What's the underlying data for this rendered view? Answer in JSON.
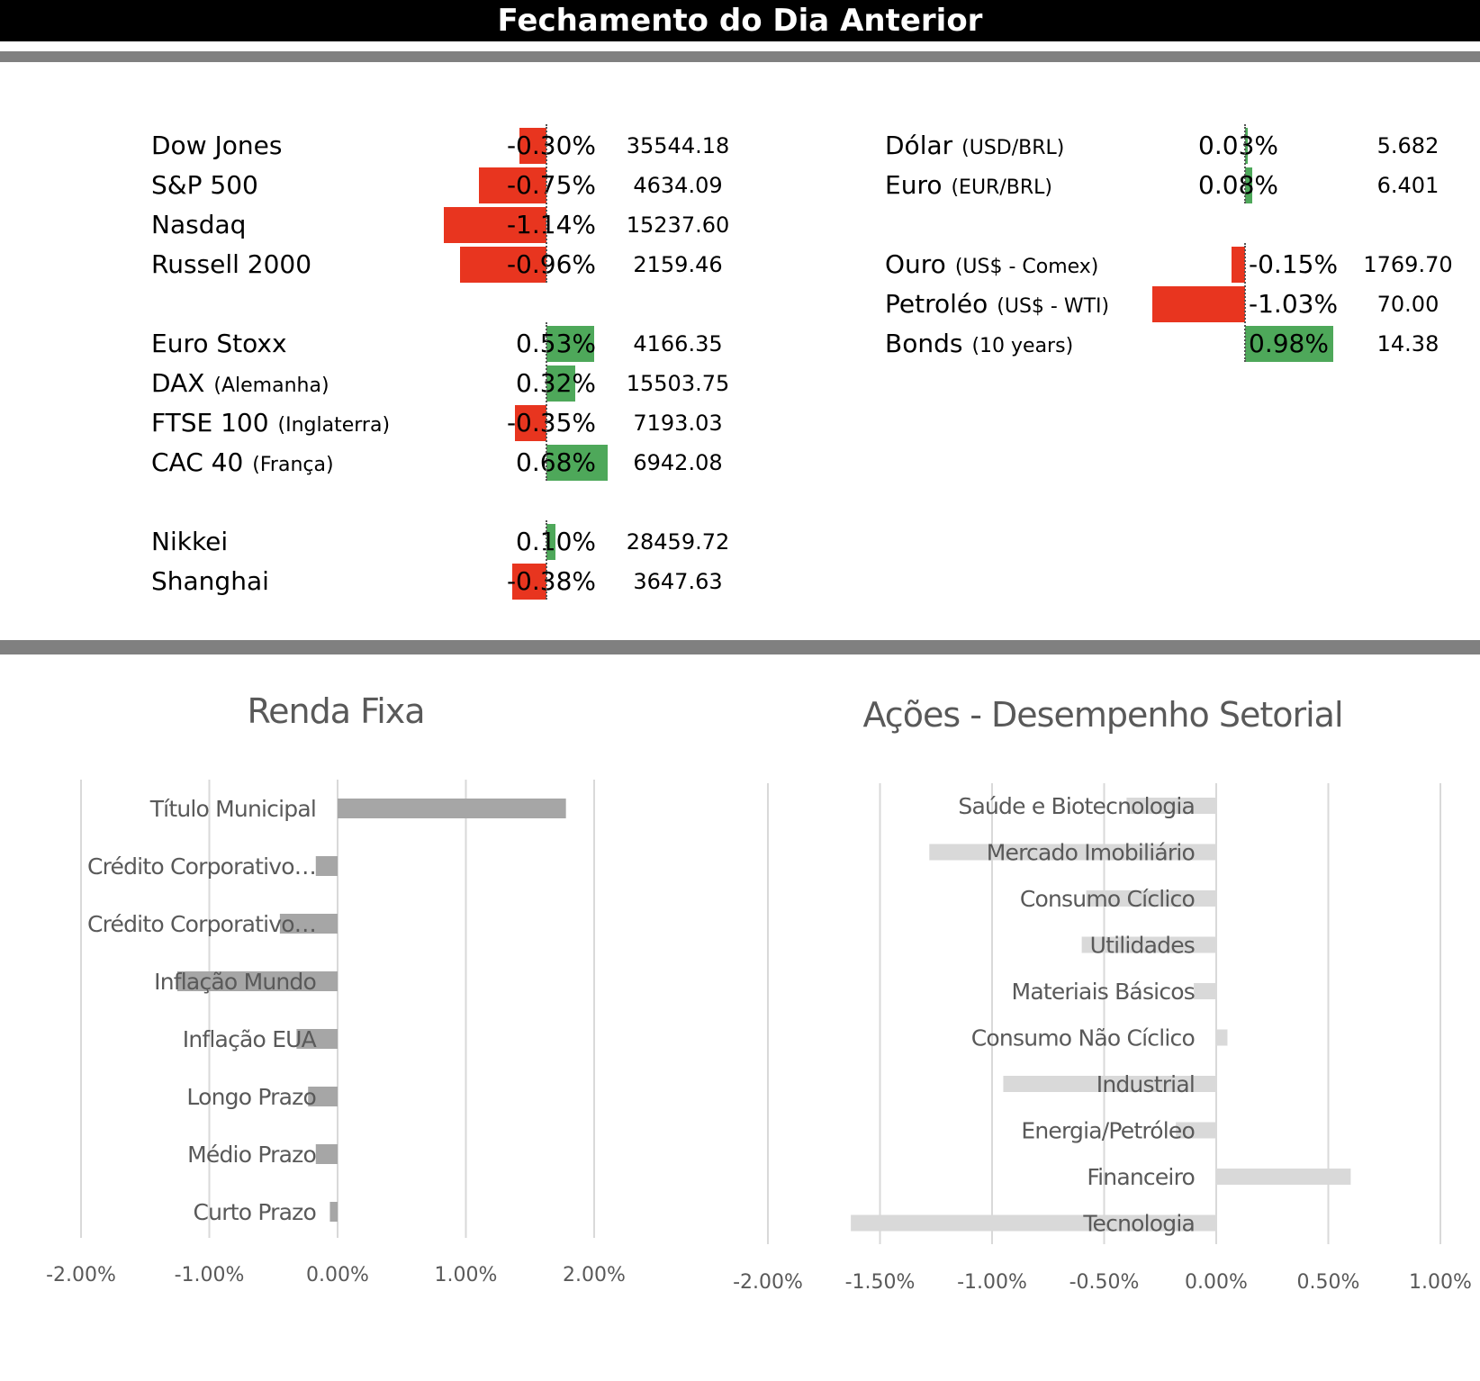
{
  "header": {
    "title": "Fechamento do Dia Anterior"
  },
  "colors": {
    "negative": "#e8351f",
    "positive": "#4ea85a",
    "rule": "#808080",
    "fixed_income_bar": "#a6a6a6",
    "sector_bar": "#d9d9d9",
    "grid": "#d9d9d9",
    "chart_text": "#595959"
  },
  "indices_left": [
    {
      "name": "Dow Jones",
      "qualifier": "",
      "change": -0.3,
      "change_label": "-0.30%",
      "close": "35544.18"
    },
    {
      "name": "S&P 500",
      "qualifier": "",
      "change": -0.75,
      "change_label": "-0.75%",
      "close": "4634.09"
    },
    {
      "name": "Nasdaq",
      "qualifier": "",
      "change": -1.14,
      "change_label": "-1.14%",
      "close": "15237.60"
    },
    {
      "name": "Russell 2000",
      "qualifier": "",
      "change": -0.96,
      "change_label": "-0.96%",
      "close": "2159.46"
    },
    {
      "name": "Euro Stoxx",
      "qualifier": "",
      "change": 0.53,
      "change_label": "0.53%",
      "close": "4166.35"
    },
    {
      "name": "DAX",
      "qualifier": "(Alemanha)",
      "change": 0.32,
      "change_label": "0.32%",
      "close": "15503.75"
    },
    {
      "name": "FTSE 100",
      "qualifier": "(Inglaterra)",
      "change": -0.35,
      "change_label": "-0.35%",
      "close": "7193.03"
    },
    {
      "name": "CAC 40",
      "qualifier": "(França)",
      "change": 0.68,
      "change_label": "0.68%",
      "close": "6942.08"
    },
    {
      "name": "Nikkei",
      "qualifier": "",
      "change": 0.1,
      "change_label": "0.10%",
      "close": "28459.72"
    },
    {
      "name": "Shanghai",
      "qualifier": "",
      "change": -0.38,
      "change_label": "-0.38%",
      "close": "3647.63"
    }
  ],
  "indices_right": [
    {
      "name": "Dólar",
      "qualifier": "(USD/BRL)",
      "change": 0.03,
      "change_label": "0.03%",
      "close": "5.682"
    },
    {
      "name": "Euro",
      "qualifier": "(EUR/BRL)",
      "change": 0.08,
      "change_label": "0.08%",
      "close": "6.401"
    },
    {
      "name": "Ouro",
      "qualifier": "(US$ - Comex)",
      "change": -0.15,
      "change_label": "-0.15%",
      "close": "1769.70"
    },
    {
      "name": "Petroléo",
      "qualifier": "(US$ - WTI)",
      "change": -1.03,
      "change_label": "-1.03%",
      "close": "70.00"
    },
    {
      "name": "Bonds",
      "qualifier": "(10 years)",
      "change": 0.98,
      "change_label": "0.98%",
      "close": "14.38"
    }
  ],
  "chart_data": [
    {
      "type": "bar",
      "orientation": "horizontal",
      "title": "Renda Fixa",
      "categories": [
        "Título Municipal",
        "Crédito Corporativo…",
        "Crédito Corporativo…",
        "Inflação Mundo",
        "Inflação EUA",
        "Longo Prazo",
        "Médio Prazo",
        "Curto Prazo"
      ],
      "values": [
        1.78,
        -0.17,
        -0.45,
        -1.25,
        -0.32,
        -0.23,
        -0.17,
        -0.06
      ],
      "xlim": [
        -2.0,
        2.0
      ],
      "xticks": [
        -2.0,
        -1.0,
        0.0,
        1.0,
        2.0
      ],
      "xtick_labels": [
        "-2.00%",
        "-1.00%",
        "0.00%",
        "1.00%",
        "2.00%"
      ],
      "grid": true,
      "xlabel": "",
      "ylabel": ""
    },
    {
      "type": "bar",
      "orientation": "horizontal",
      "title": "Ações - Desempenho Setorial",
      "categories": [
        "Saúde e Biotecnologia",
        "Mercado Imobiliário",
        "Consumo Cíclico",
        "Utilidades",
        "Materiais Básicos",
        "Consumo Não Cíclico",
        "Industrial",
        "Energia/Petróleo",
        "Financeiro",
        "Tecnologia"
      ],
      "values": [
        -0.4,
        -1.28,
        -0.58,
        -0.6,
        -0.1,
        0.05,
        -0.95,
        -0.18,
        0.6,
        -1.63
      ],
      "xlim": [
        -2.0,
        1.0
      ],
      "xticks": [
        -2.0,
        -1.5,
        -1.0,
        -0.5,
        0.0,
        0.5,
        1.0
      ],
      "xtick_labels": [
        "-2.00%",
        "-1.50%",
        "-1.00%",
        "-0.50%",
        "0.00%",
        "0.50%",
        "1.00%"
      ],
      "grid": true,
      "xlabel": "",
      "ylabel": ""
    }
  ]
}
